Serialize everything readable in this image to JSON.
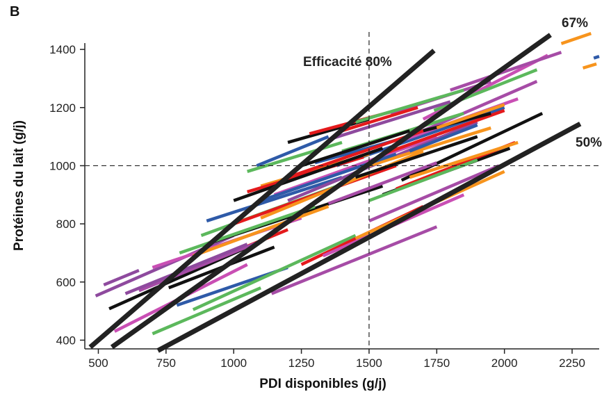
{
  "panel_label": "B",
  "chart_data": {
    "type": "line",
    "xlabel": "PDI disponibles (g/j)",
    "ylabel": "Protéines du lait (g/j)",
    "xlim": [
      450,
      2350
    ],
    "ylim": [
      370,
      1460
    ],
    "xticks": [
      500,
      750,
      1000,
      1250,
      1500,
      1750,
      2000,
      2250
    ],
    "yticks": [
      400,
      600,
      800,
      1000,
      1200,
      1400
    ],
    "grid": false,
    "reference_lines": {
      "x": 1500,
      "y": 1000,
      "style": "dashed"
    },
    "efficiency_lines": [
      {
        "label": "Efficacité 80%",
        "points": [
          [
            470,
            376
          ],
          [
            1740,
            1396
          ]
        ]
      },
      {
        "label": "67%",
        "points": [
          [
            550,
            376
          ],
          [
            2170,
            1450
          ]
        ]
      },
      {
        "label": "50%",
        "points": [
          [
            720,
            364
          ],
          [
            2280,
            1144
          ]
        ]
      }
    ],
    "colors": [
      "#8e4a9e",
      "#e41a1c",
      "#f7941d",
      "#2e5aa8",
      "#5cb85c",
      "#a64ca6",
      "#111111",
      "#c94fb4"
    ],
    "series_sample": [
      {
        "color": "#8e4a9e",
        "points": [
          [
            490,
            552
          ],
          [
            1000,
            760
          ]
        ]
      },
      {
        "color": "#111111",
        "points": [
          [
            540,
            508
          ],
          [
            1100,
            740
          ]
        ]
      },
      {
        "color": "#8e4a9e",
        "points": [
          [
            520,
            590
          ],
          [
            650,
            640
          ]
        ]
      },
      {
        "color": "#c94fb4",
        "points": [
          [
            560,
            430
          ],
          [
            1050,
            660
          ]
        ]
      },
      {
        "color": "#5cb85c",
        "points": [
          [
            700,
            422
          ],
          [
            1100,
            580
          ]
        ]
      },
      {
        "color": "#2e5aa8",
        "points": [
          [
            790,
            520
          ],
          [
            1200,
            650
          ]
        ]
      },
      {
        "color": "#5cb85c",
        "points": [
          [
            850,
            505
          ],
          [
            1450,
            760
          ]
        ]
      },
      {
        "color": "#a64ca6",
        "points": [
          [
            1140,
            560
          ],
          [
            1750,
            790
          ]
        ]
      },
      {
        "color": "#e41a1c",
        "points": [
          [
            1250,
            660
          ],
          [
            1700,
            860
          ]
        ]
      },
      {
        "color": "#c94fb4",
        "points": [
          [
            1330,
            690
          ],
          [
            1850,
            900
          ]
        ]
      },
      {
        "color": "#f7941d",
        "points": [
          [
            1450,
            750
          ],
          [
            2000,
            980
          ]
        ]
      },
      {
        "color": "#a64ca6",
        "points": [
          [
            1500,
            810
          ],
          [
            1980,
            1000
          ]
        ]
      },
      {
        "color": "#111111",
        "points": [
          [
            1550,
            900
          ],
          [
            2020,
            1060
          ]
        ]
      },
      {
        "color": "#e41a1c",
        "points": [
          [
            1600,
            920
          ],
          [
            2040,
            1080
          ]
        ]
      },
      {
        "color": "#111111",
        "points": [
          [
            1620,
            950
          ],
          [
            2140,
            1180
          ]
        ]
      },
      {
        "color": "#2e5aa8",
        "points": [
          [
            1380,
            1000
          ],
          [
            2000,
            1200
          ]
        ]
      },
      {
        "color": "#a64ca6",
        "points": [
          [
            1650,
            1100
          ],
          [
            2120,
            1290
          ]
        ]
      },
      {
        "color": "#c94fb4",
        "points": [
          [
            1700,
            1160
          ],
          [
            2160,
            1380
          ]
        ]
      },
      {
        "color": "#5cb85c",
        "points": [
          [
            1740,
            1190
          ],
          [
            2120,
            1330
          ]
        ]
      },
      {
        "color": "#a64ca6",
        "points": [
          [
            1800,
            1260
          ],
          [
            2210,
            1390
          ]
        ]
      },
      {
        "color": "#f7941d",
        "points": [
          [
            2210,
            1420
          ],
          [
            2320,
            1455
          ]
        ]
      },
      {
        "color": "#f7941d",
        "points": [
          [
            2290,
            1336
          ],
          [
            2340,
            1350
          ]
        ]
      },
      {
        "color": "#2e5aa8",
        "points": [
          [
            2330,
            1370
          ],
          [
            2350,
            1376
          ]
        ]
      },
      {
        "color": "#2e5aa8",
        "points": [
          [
            1085,
            1000
          ],
          [
            1350,
            1100
          ]
        ]
      },
      {
        "color": "#111111",
        "points": [
          [
            1200,
            1080
          ],
          [
            1500,
            1160
          ]
        ]
      },
      {
        "color": "#e41a1c",
        "points": [
          [
            1280,
            1110
          ],
          [
            1600,
            1190
          ]
        ]
      },
      {
        "color": "#5cb85c",
        "points": [
          [
            1050,
            980
          ],
          [
            1400,
            1080
          ]
        ]
      },
      {
        "color": "#f7941d",
        "points": [
          [
            1100,
            930
          ],
          [
            1500,
            1040
          ]
        ]
      },
      {
        "color": "#e41a1c",
        "points": [
          [
            1050,
            910
          ],
          [
            1480,
            1030
          ]
        ]
      },
      {
        "color": "#111111",
        "points": [
          [
            1000,
            880
          ],
          [
            1550,
            1060
          ]
        ]
      },
      {
        "color": "#2e5aa8",
        "points": [
          [
            900,
            810
          ],
          [
            1400,
            960
          ]
        ]
      },
      {
        "color": "#5cb85c",
        "points": [
          [
            880,
            760
          ],
          [
            1500,
            970
          ]
        ]
      },
      {
        "color": "#111111",
        "points": [
          [
            930,
            740
          ],
          [
            1550,
            930
          ]
        ]
      },
      {
        "color": "#e41a1c",
        "points": [
          [
            1000,
            800
          ],
          [
            1600,
            1000
          ]
        ]
      },
      {
        "color": "#c94fb4",
        "points": [
          [
            1150,
            900
          ],
          [
            1750,
            1100
          ]
        ]
      },
      {
        "color": "#8e4a9e",
        "points": [
          [
            1200,
            880
          ],
          [
            1900,
            1150
          ]
        ]
      },
      {
        "color": "#f7941d",
        "points": [
          [
            1100,
            820
          ],
          [
            1700,
            1050
          ]
        ]
      },
      {
        "color": "#e41a1c",
        "points": [
          [
            780,
            620
          ],
          [
            1200,
            780
          ]
        ]
      },
      {
        "color": "#a64ca6",
        "points": [
          [
            650,
            570
          ],
          [
            1100,
            740
          ]
        ]
      },
      {
        "color": "#111111",
        "points": [
          [
            760,
            580
          ],
          [
            1150,
            720
          ]
        ]
      },
      {
        "color": "#2e5aa8",
        "points": [
          [
            1300,
            1010
          ],
          [
            1800,
            1140
          ]
        ]
      },
      {
        "color": "#5cb85c",
        "points": [
          [
            1400,
            1050
          ],
          [
            1850,
            1180
          ]
        ]
      },
      {
        "color": "#111111",
        "points": [
          [
            1450,
            960
          ],
          [
            1900,
            1100
          ]
        ]
      },
      {
        "color": "#f7941d",
        "points": [
          [
            1500,
            1000
          ],
          [
            1950,
            1130
          ]
        ]
      },
      {
        "color": "#e41a1c",
        "points": [
          [
            1550,
            1040
          ],
          [
            2000,
            1190
          ]
        ]
      },
      {
        "color": "#c94fb4",
        "points": [
          [
            1600,
            1080
          ],
          [
            2050,
            1230
          ]
        ]
      },
      {
        "color": "#111111",
        "points": [
          [
            1700,
            1120
          ],
          [
            1950,
            1180
          ]
        ]
      },
      {
        "color": "#a64ca6",
        "points": [
          [
            1580,
            1180
          ],
          [
            1950,
            1290
          ]
        ]
      },
      {
        "color": "#5cb85c",
        "points": [
          [
            1450,
            1150
          ],
          [
            1850,
            1260
          ]
        ]
      },
      {
        "color": "#8e4a9e",
        "points": [
          [
            1350,
            1090
          ],
          [
            1800,
            1220
          ]
        ]
      },
      {
        "color": "#e41a1c",
        "points": [
          [
            1200,
            960
          ],
          [
            1700,
            1120
          ]
        ]
      },
      {
        "color": "#2e5aa8",
        "points": [
          [
            1100,
            880
          ],
          [
            1600,
            1040
          ]
        ]
      },
      {
        "color": "#5cb85c",
        "points": [
          [
            800,
            700
          ],
          [
            1300,
            860
          ]
        ]
      },
      {
        "color": "#c94fb4",
        "points": [
          [
            700,
            650
          ],
          [
            1250,
            820
          ]
        ]
      },
      {
        "color": "#8e4a9e",
        "points": [
          [
            600,
            560
          ],
          [
            1050,
            730
          ]
        ]
      },
      {
        "color": "#f7941d",
        "points": [
          [
            850,
            690
          ],
          [
            1350,
            860
          ]
        ]
      },
      {
        "color": "#111111",
        "points": [
          [
            1250,
            1000
          ],
          [
            1650,
            1120
          ]
        ]
      },
      {
        "color": "#e41a1c",
        "points": [
          [
            1400,
            1120
          ],
          [
            1680,
            1200
          ]
        ]
      },
      {
        "color": "#2e5aa8",
        "points": [
          [
            1650,
            1050
          ],
          [
            1900,
            1140
          ]
        ]
      },
      {
        "color": "#f7941d",
        "points": [
          [
            1750,
            1130
          ],
          [
            2000,
            1210
          ]
        ]
      },
      {
        "color": "#a64ca6",
        "points": [
          [
            1350,
            870
          ],
          [
            1750,
            1010
          ]
        ]
      },
      {
        "color": "#5cb85c",
        "points": [
          [
            1500,
            880
          ],
          [
            1900,
            1020
          ]
        ]
      },
      {
        "color": "#f7941d",
        "points": [
          [
            1650,
            960
          ],
          [
            2050,
            1080
          ]
        ]
      }
    ]
  }
}
